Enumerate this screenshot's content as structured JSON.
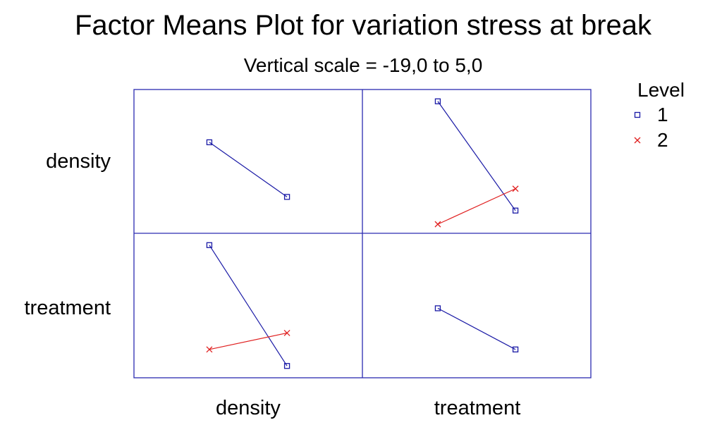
{
  "title": "Factor Means Plot for variation stress at break",
  "subtitle": "Vertical scale = -19,0 to 5,0",
  "colors": {
    "level1": "#1a1aa6",
    "level2": "#e02020",
    "frame": "#2b2bb0"
  },
  "legend": {
    "title": "Level",
    "items": [
      {
        "label": "1",
        "marker": "square-icon",
        "color": "#1a1aa6"
      },
      {
        "label": "2",
        "marker": "cross-icon",
        "color": "#e02020"
      }
    ]
  },
  "chart_data": {
    "type": "line",
    "factors": [
      "density",
      "treatment"
    ],
    "ylim": [
      -19.0,
      5.0
    ],
    "legend_placement": "top-right",
    "panels": [
      {
        "row": "density",
        "col": "density",
        "series": [
          {
            "name": "1",
            "values": [
              -3.5,
              -13.5
            ]
          }
        ]
      },
      {
        "row": "density",
        "col": "treatment",
        "series": [
          {
            "name": "1",
            "values": [
              4.0,
              -16.0
            ]
          },
          {
            "name": "2",
            "values": [
              -18.5,
              -12.0
            ]
          }
        ]
      },
      {
        "row": "treatment",
        "col": "density",
        "series": [
          {
            "name": "1",
            "values": [
              4.0,
              -18.0
            ]
          },
          {
            "name": "2",
            "values": [
              -15.0,
              -12.0
            ]
          }
        ]
      },
      {
        "row": "treatment",
        "col": "treatment",
        "series": [
          {
            "name": "1",
            "values": [
              -7.5,
              -15.0
            ]
          }
        ]
      }
    ]
  }
}
